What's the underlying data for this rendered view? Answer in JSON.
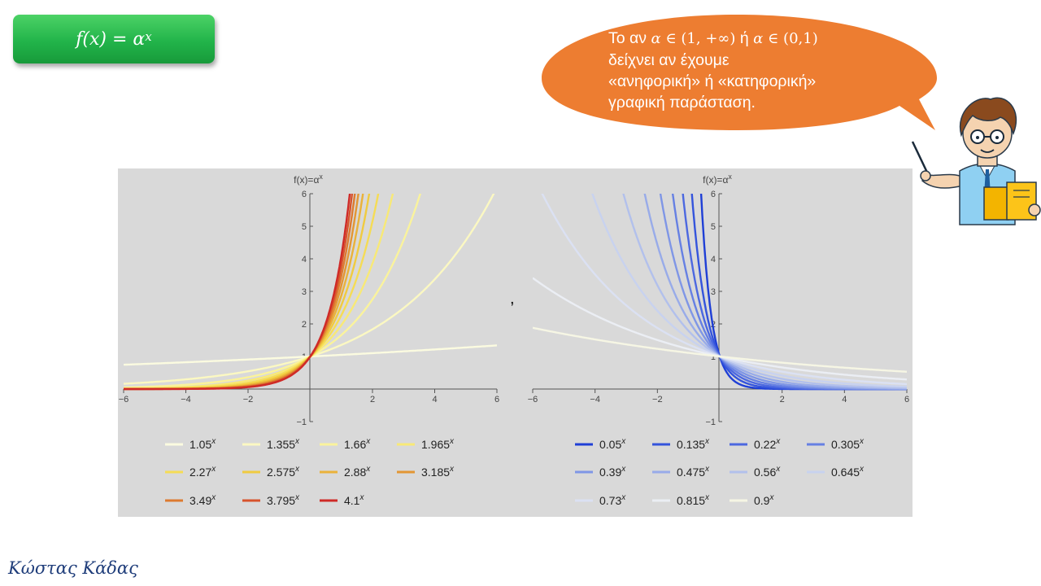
{
  "header": {
    "formula_base": "f(x) = α",
    "formula_exp": "x"
  },
  "speech_bubble": {
    "line1_prefix": "Το αν ",
    "cond1_var": "α",
    "cond1_rel": " ∈ (1, +∞)",
    "line1_mid": " ή ",
    "cond2_var": "α",
    "cond2_rel": " ∈ (0,1)",
    "line2": "δείχνει αν έχουμε",
    "line3": "«ανηφορική» ή «κατηφορική»",
    "line4": "γραφική παράσταση."
  },
  "separator": ",",
  "signature": "Κώστας Κάδας",
  "colors": {
    "formula_box": "#22b44a",
    "bubble": "#ed7d31",
    "panel_bg": "#d9d9d9",
    "signature": "#1f3d7a"
  },
  "icons": [
    "teacher-with-book-icon"
  ],
  "chart_data": [
    {
      "type": "line",
      "title": "f(x)=α^x",
      "ylabel": "f(x)=α^x",
      "xlabel": "",
      "xlim": [
        -6,
        6
      ],
      "ylim": [
        -1,
        6
      ],
      "xticks": [
        -6,
        -4,
        -2,
        2,
        4,
        6
      ],
      "yticks": [
        -1,
        1,
        2,
        3,
        4,
        5,
        6
      ],
      "function": "a^x",
      "legend_position": "bottom",
      "series": [
        {
          "name": "1.05",
          "base": 1.05,
          "color": "#fbfbe0"
        },
        {
          "name": "1.355",
          "base": 1.355,
          "color": "#fbf8c2"
        },
        {
          "name": "1.66",
          "base": 1.66,
          "color": "#faf39c"
        },
        {
          "name": "1.965",
          "base": 1.965,
          "color": "#f8e976"
        },
        {
          "name": "2.27",
          "base": 2.27,
          "color": "#f5dc55"
        },
        {
          "name": "2.575",
          "base": 2.575,
          "color": "#f0cb40"
        },
        {
          "name": "2.88",
          "base": 2.88,
          "color": "#eab23a"
        },
        {
          "name": "3.185",
          "base": 3.185,
          "color": "#e39634"
        },
        {
          "name": "3.49",
          "base": 3.49,
          "color": "#dd7a30"
        },
        {
          "name": "3.795",
          "base": 3.795,
          "color": "#d7532c"
        },
        {
          "name": "4.1",
          "base": 4.1,
          "color": "#cf2a27"
        }
      ]
    },
    {
      "type": "line",
      "title": "f(x)=α^x",
      "ylabel": "f(x)=α^x",
      "xlabel": "",
      "xlim": [
        -6,
        6
      ],
      "ylim": [
        -1,
        6
      ],
      "xticks": [
        -6,
        -4,
        -2,
        2,
        4,
        6
      ],
      "yticks": [
        -1,
        1,
        2,
        3,
        4,
        5,
        6
      ],
      "function": "a^x",
      "legend_position": "bottom",
      "series": [
        {
          "name": "0.05",
          "base": 0.05,
          "color": "#1f3fd6"
        },
        {
          "name": "0.135",
          "base": 0.135,
          "color": "#3454dc"
        },
        {
          "name": "0.22",
          "base": 0.22,
          "color": "#4c68e0"
        },
        {
          "name": "0.305",
          "base": 0.305,
          "color": "#6680e3"
        },
        {
          "name": "0.39",
          "base": 0.39,
          "color": "#7f96e6"
        },
        {
          "name": "0.475",
          "base": 0.475,
          "color": "#98abe9"
        },
        {
          "name": "0.56",
          "base": 0.56,
          "color": "#b2c0ec"
        },
        {
          "name": "0.645",
          "base": 0.645,
          "color": "#c8d2ef"
        },
        {
          "name": "0.73",
          "base": 0.73,
          "color": "#dbe1f3"
        },
        {
          "name": "0.815",
          "base": 0.815,
          "color": "#ebeef4"
        },
        {
          "name": "0.9",
          "base": 0.9,
          "color": "#f6f6e4"
        }
      ]
    }
  ]
}
